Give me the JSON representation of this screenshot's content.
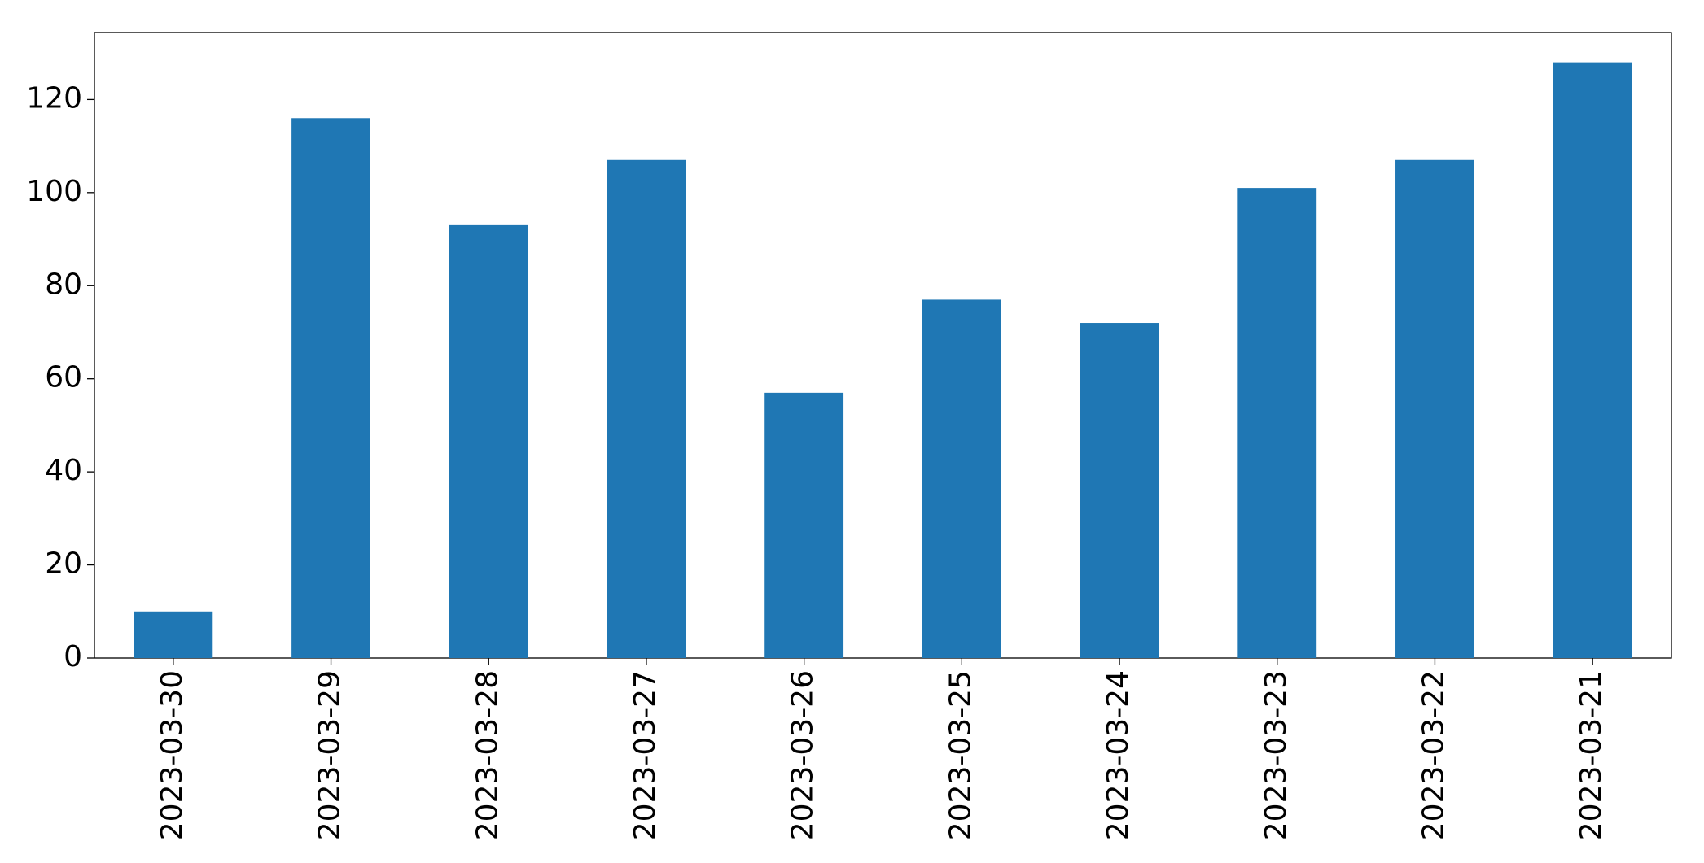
{
  "chart_data": {
    "type": "bar",
    "categories": [
      "2023-03-30",
      "2023-03-29",
      "2023-03-28",
      "2023-03-27",
      "2023-03-26",
      "2023-03-25",
      "2023-03-24",
      "2023-03-23",
      "2023-03-22",
      "2023-03-21"
    ],
    "values": [
      10,
      116,
      93,
      107,
      57,
      77,
      72,
      101,
      107,
      128
    ],
    "color": "#1f77b4",
    "ylim": [
      0,
      134.4
    ],
    "yticks": [
      0,
      20,
      40,
      60,
      80,
      100,
      120
    ],
    "grid": false
  }
}
